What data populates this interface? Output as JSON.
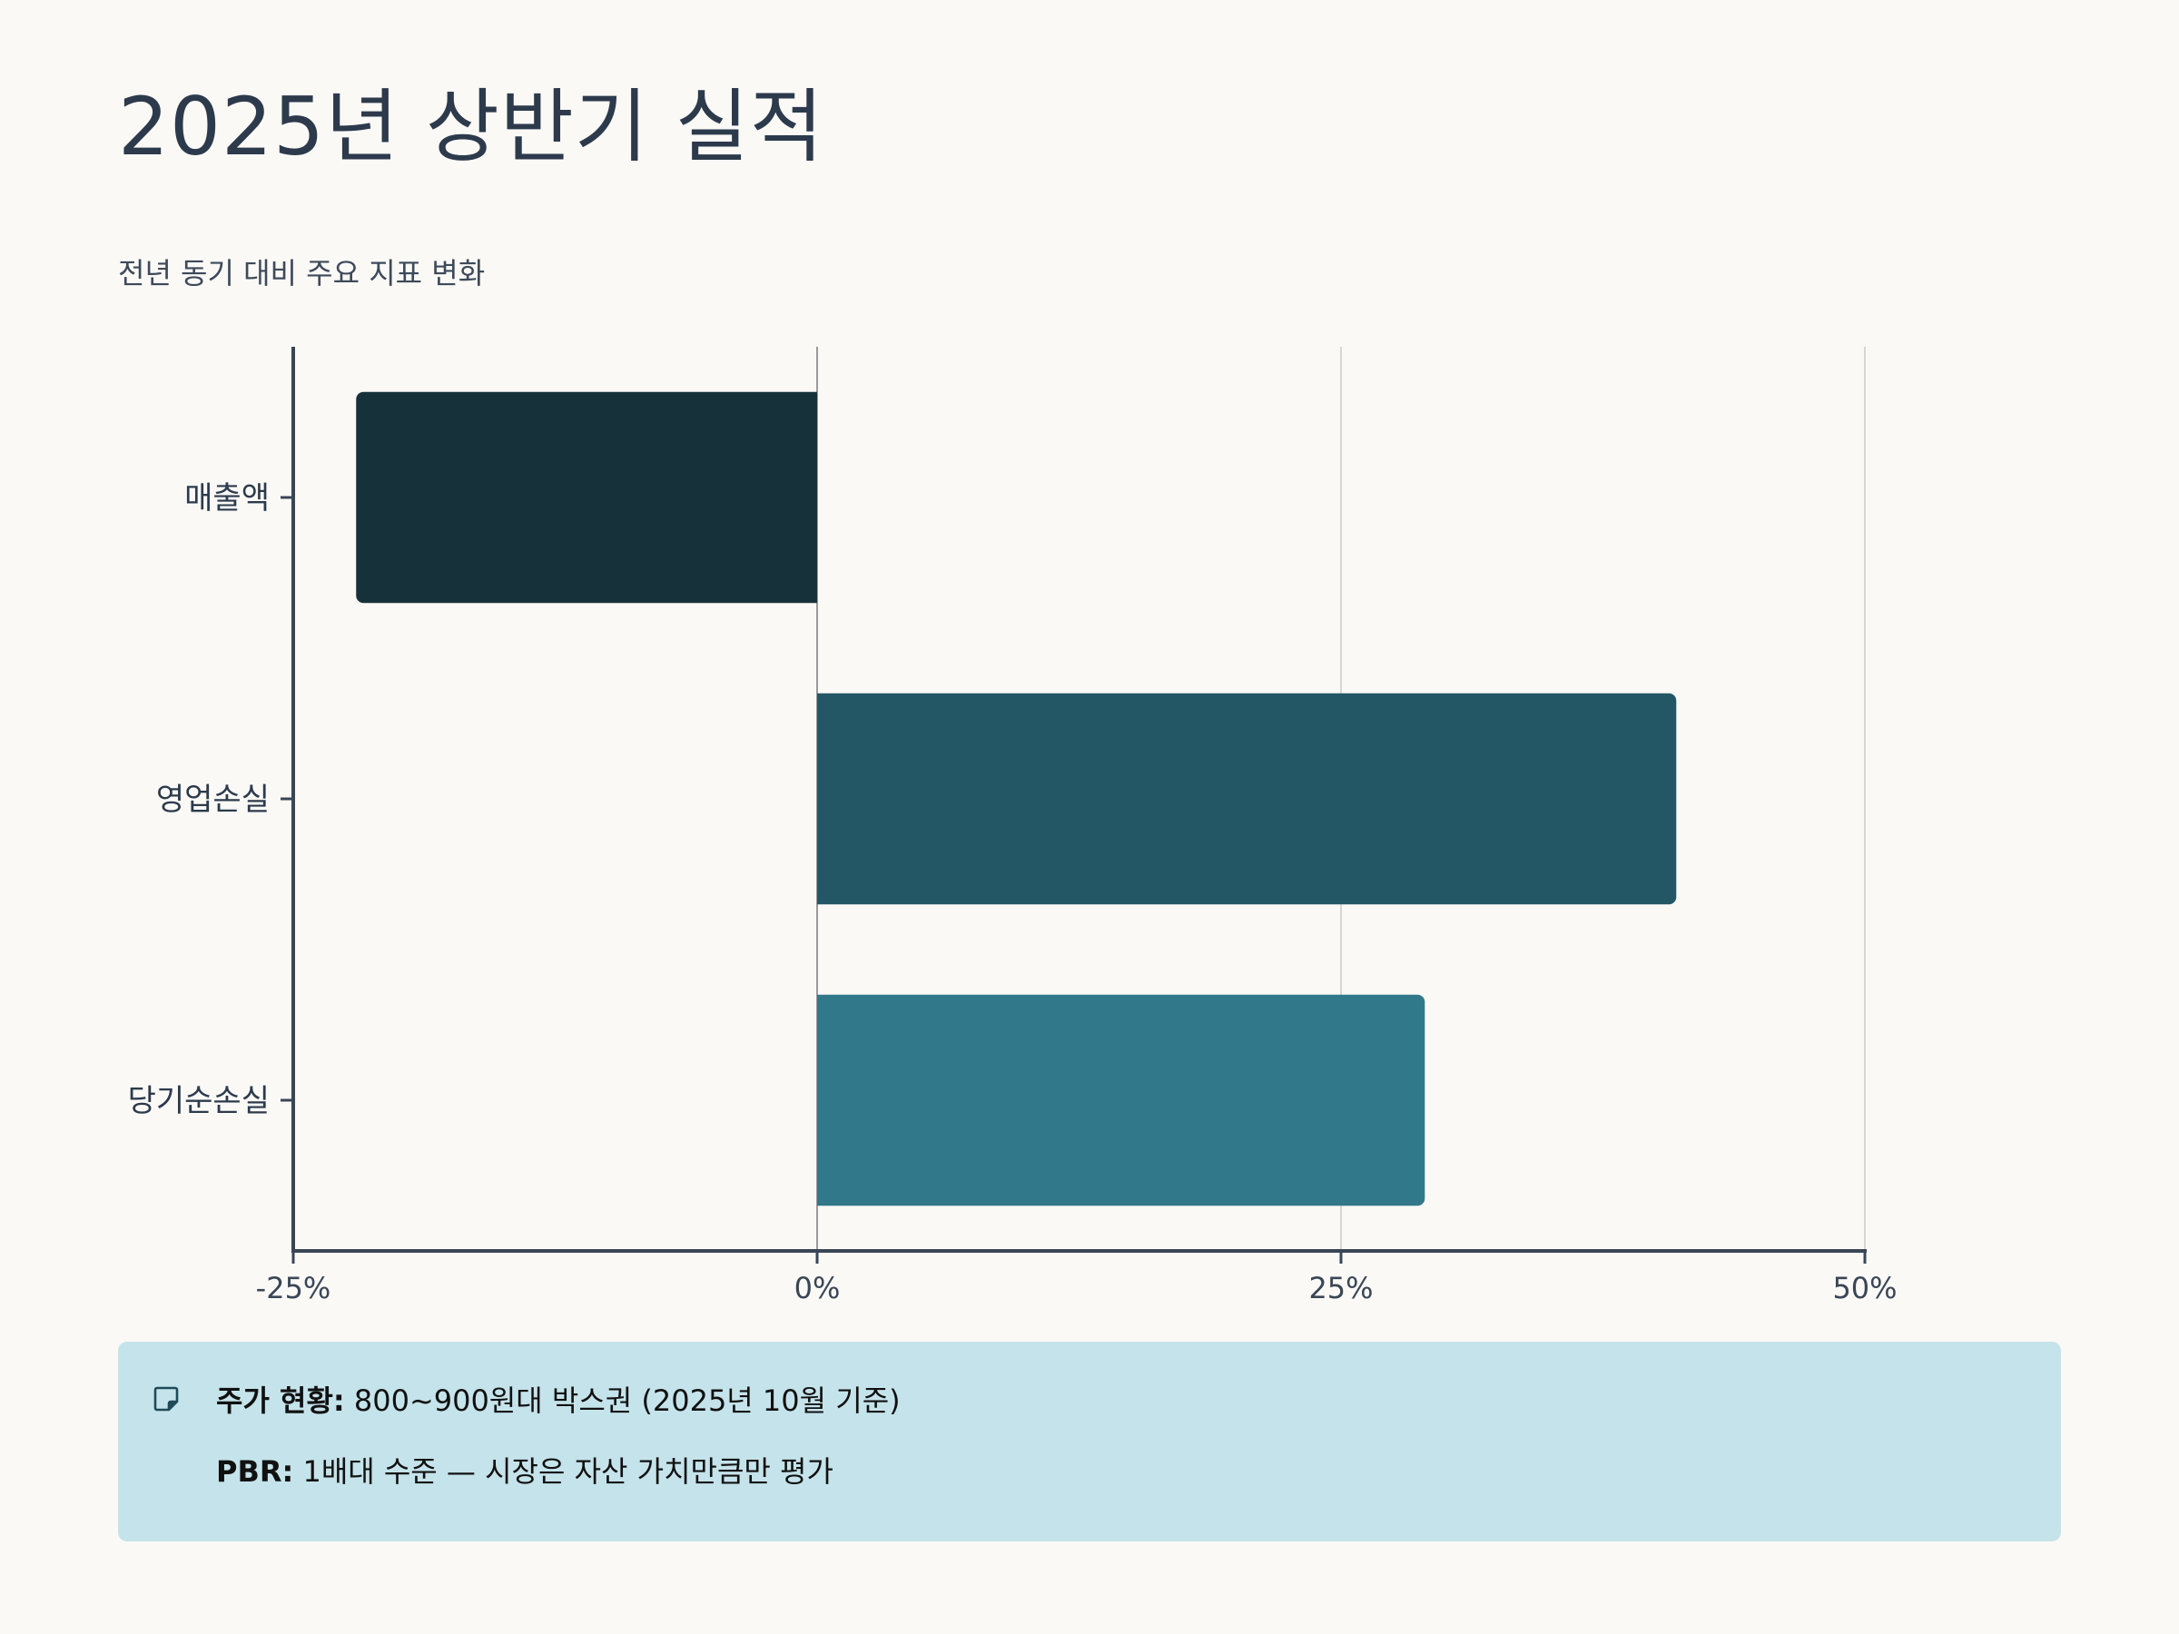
{
  "header": {
    "title": "2025년 상반기 실적",
    "subtitle": "전년 동기 대비 주요 지표 변화"
  },
  "chart_data": {
    "type": "bar",
    "orientation": "horizontal",
    "title": "",
    "xlabel": "",
    "ylabel": "",
    "categories": [
      "매출액",
      "영업손실",
      "당기순손실"
    ],
    "values": [
      -22,
      41,
      29
    ],
    "colors": [
      "#16313a",
      "#245766",
      "#31798a"
    ],
    "unit": "%",
    "xlim": [
      -25,
      50
    ],
    "xticks": [
      -25,
      0,
      25,
      50
    ],
    "xtick_labels": [
      "-25%",
      "0%",
      "25%",
      "50%"
    ],
    "grid": true
  },
  "note": {
    "icon": "sticky-note-icon",
    "items": [
      {
        "label": "주가 현황:",
        "text": " 800~900원대 박스권 (2025년 10월 기준)"
      },
      {
        "label": "PBR:",
        "text": " 1배대 수준 — 시장은 자산 가치만큼만 평가"
      }
    ]
  },
  "colors": {
    "background": "#faf9f6",
    "text": "#2c3a4c",
    "note_background": "#c5e3ea"
  }
}
